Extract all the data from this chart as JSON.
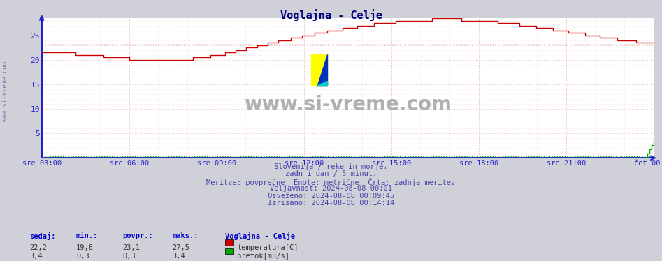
{
  "title": "Voglajna - Celje",
  "title_color": "#000080",
  "bg_color": "#d0d0d8",
  "plot_bg_color": "#ffffff",
  "x_labels": [
    "sre 03:00",
    "sre 06:00",
    "sre 09:00",
    "sre 12:00",
    "sre 15:00",
    "sre 18:00",
    "sre 21:00",
    "čet 00:00"
  ],
  "y_ticks": [
    5,
    10,
    15,
    20,
    25
  ],
  "y_min": 0,
  "y_max": 28.5,
  "grid_color": "#e8b8b8",
  "temp_color": "#cc0000",
  "flow_color": "#00aa00",
  "temp_avg": 23.1,
  "flow_avg": 0.3,
  "footer_lines": [
    "Slovenija / reke in morje.",
    "zadnji dan / 5 minut.",
    "Meritve: povprečne  Enote: metrične  Črta: zadnja meritev",
    "Veljavnost: 2024-08-08 00:01",
    "Osveženo: 2024-08-08 00:09:45",
    "Izrisano: 2024-08-08 00:14:14"
  ],
  "footer_color": "#4444aa",
  "watermark": "www.si-vreme.com",
  "watermark_color": "#b0b0b0",
  "left_label": "www.si-vreme.com",
  "axis_color": "#2222cc",
  "tick_color": "#2222cc",
  "stats_header_color": "#0000cc",
  "stats_value_color": "#333333",
  "sedaj_label": "sedaj:",
  "min_label": "min.:",
  "povpr_label": "povpr.:",
  "maks_label": "maks.:",
  "station_label": "Voglajna - Celje",
  "temp_sedaj": "22,2",
  "temp_min": "19,6",
  "temp_povpr": "23,1",
  "temp_maks": "27,5",
  "temp_legend": "temperatura[C]",
  "flow_sedaj": "3,4",
  "flow_min": "0,3",
  "flow_povpr": "0,3",
  "flow_maks": "3,4",
  "flow_legend": "pretok[m3/s]"
}
